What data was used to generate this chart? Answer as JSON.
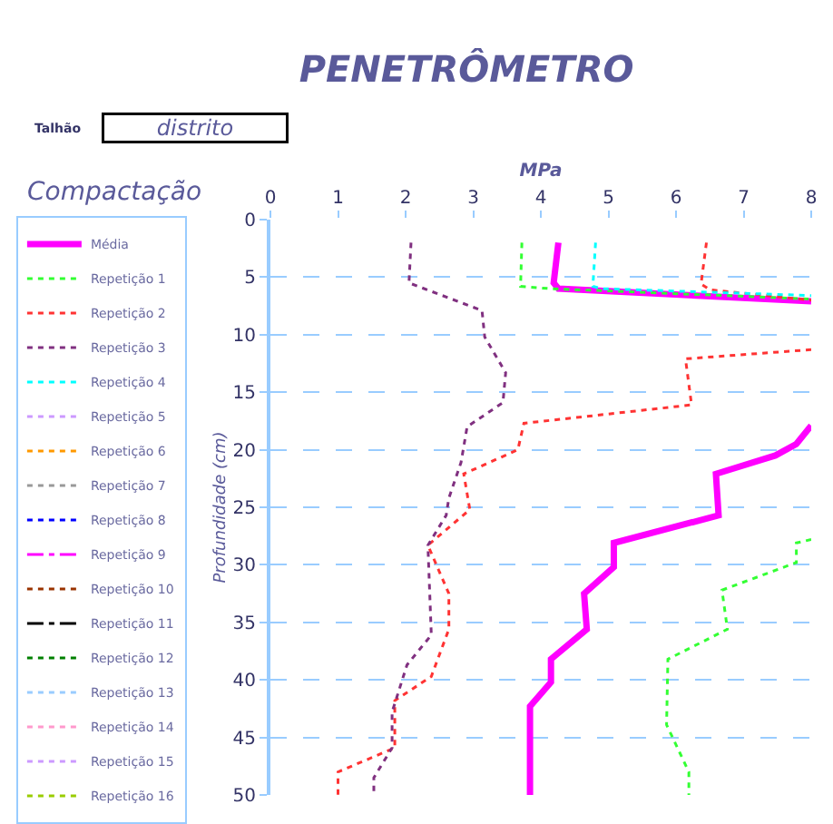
{
  "chart_data": {
    "type": "line",
    "title": "PENETRÔMETRO",
    "xlabel": "MPa",
    "ylabel": "Profundidade (cm)",
    "annotations": [
      "Talhão",
      "distrito",
      "Compactação"
    ],
    "xlim": [
      0,
      8
    ],
    "xticks": [
      0,
      1,
      2,
      3,
      4,
      5,
      6,
      7,
      8
    ],
    "ylim": [
      50,
      0
    ],
    "yticks": [
      0,
      5,
      10,
      15,
      20,
      25,
      30,
      35,
      40,
      45,
      50
    ],
    "grid": "y",
    "legend": "left",
    "marker": "none",
    "series": [
      {
        "name": "Média",
        "color": "#ff00ff",
        "line_style": "solid",
        "x": [
          4.26,
          4.19,
          4.26,
          8,
          null,
          8,
          7.78,
          7.47,
          6.59,
          6.63,
          5.08,
          5.08,
          4.64,
          4.68,
          4.15,
          4.15,
          3.84,
          3.84
        ],
        "values": [
          2.0,
          5.5,
          6.0,
          7.1,
          null,
          17.9,
          19.5,
          20.5,
          22.1,
          25.7,
          28.1,
          30.2,
          32.5,
          35.6,
          38.2,
          40.2,
          42.3,
          50
        ]
      },
      {
        "name": "Repetição 1",
        "color": "#33ff33",
        "line_style": "dotted",
        "x": [
          3.72,
          3.7,
          4.14,
          8,
          null,
          8,
          7.78,
          7.78,
          6.68,
          6.76,
          5.88,
          5.86,
          6.19,
          6.19
        ],
        "values": [
          2.0,
          5.8,
          6.0,
          6.9,
          null,
          27.8,
          28.1,
          29.8,
          32.2,
          35.6,
          38.2,
          43.9,
          48,
          50
        ]
      },
      {
        "name": "Repetição 2",
        "color": "#ff3333",
        "line_style": "dotted",
        "x": [
          6.45,
          6.37,
          6.5,
          8,
          null,
          8,
          6.14,
          6.23,
          3.75,
          3.66,
          2.86,
          2.95,
          2.33,
          2.64,
          2.64,
          2.38,
          1.84,
          1.84,
          1.0,
          1.0
        ],
        "values": [
          2.0,
          5.6,
          6.1,
          7.0,
          null,
          11.3,
          12.1,
          16.1,
          17.7,
          20.0,
          22.1,
          25.2,
          28.3,
          32.5,
          35.6,
          39.7,
          41.8,
          45.9,
          48,
          50
        ]
      },
      {
        "name": "Repetição 3",
        "color": "#803080",
        "line_style": "dotted",
        "x": [
          2.08,
          2.05,
          3.13,
          3.17,
          3.48,
          3.44,
          2.91,
          2.82,
          2.64,
          2.6,
          2.33,
          2.38,
          2.02,
          1.8,
          1.8,
          1.53,
          1.53
        ],
        "values": [
          2.0,
          5.5,
          7.9,
          10.2,
          13.3,
          15.9,
          18.0,
          21.1,
          24.2,
          25.7,
          28.3,
          36.1,
          38.7,
          42.8,
          45.9,
          48.5,
          50
        ]
      },
      {
        "name": "Repetição 4",
        "color": "#00ffff",
        "line_style": "dotted",
        "x": [
          4.81,
          4.77,
          4.9,
          8
        ],
        "values": [
          2.0,
          5.8,
          6.0,
          6.6
        ]
      },
      {
        "name": "Repetição 5",
        "color": "#cc99ff",
        "line_style": "dotted",
        "x": [
          null
        ],
        "values": [
          null
        ]
      },
      {
        "name": "Repetição 6",
        "color": "#ff9900",
        "line_style": "dotted",
        "x": [
          null
        ],
        "values": [
          null
        ]
      },
      {
        "name": "Repetição 7",
        "color": "#999999",
        "line_style": "dotted",
        "x": [
          null
        ],
        "values": [
          null
        ]
      },
      {
        "name": "Repetição 8",
        "color": "#0000ff",
        "line_style": "dotted",
        "x": [
          null
        ],
        "values": [
          null
        ]
      },
      {
        "name": "Repetição 9",
        "color": "#ff00ff",
        "line_style": "dashed",
        "x": [
          null
        ],
        "values": [
          null
        ]
      },
      {
        "name": "Repetição 10",
        "color": "#993300",
        "line_style": "dotted",
        "x": [
          null
        ],
        "values": [
          null
        ]
      },
      {
        "name": "Repetição 11",
        "color": "#000000",
        "line_style": "dashed",
        "x": [
          null
        ],
        "values": [
          null
        ]
      },
      {
        "name": "Repetição 12",
        "color": "#008000",
        "line_style": "dotted",
        "x": [
          null
        ],
        "values": [
          null
        ]
      },
      {
        "name": "Repetição 13",
        "color": "#99ccff",
        "line_style": "dotted",
        "x": [
          null
        ],
        "values": [
          null
        ]
      },
      {
        "name": "Repetição 14",
        "color": "#ff99cc",
        "line_style": "dotted",
        "x": [
          null
        ],
        "values": [
          null
        ]
      },
      {
        "name": "Repetição 15",
        "color": "#cc99ff",
        "line_style": "dotted",
        "x": [
          null
        ],
        "values": [
          null
        ]
      },
      {
        "name": "Repetição 16",
        "color": "#99cc00",
        "line_style": "dotted",
        "x": [
          null
        ],
        "values": [
          null
        ]
      }
    ]
  }
}
